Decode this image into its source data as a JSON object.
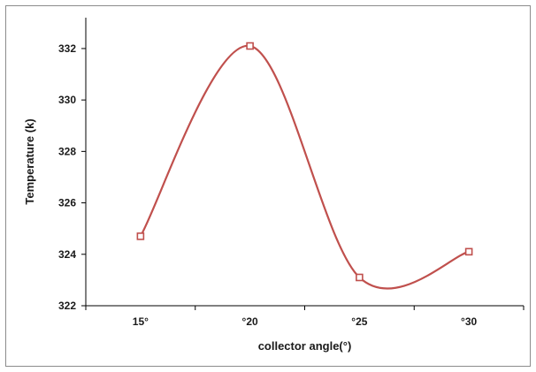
{
  "chart_data": {
    "type": "line",
    "title": "",
    "xlabel": "collector angle(°)",
    "ylabel": "Temperature   (k)",
    "categories": [
      "15°",
      "°20",
      "°25",
      "°30"
    ],
    "series": [
      {
        "values": [
          324.7,
          332.1,
          323.1,
          324.1
        ]
      }
    ],
    "yticks": [
      "322",
      "324",
      "326",
      "328",
      "330",
      "332"
    ],
    "ylim": [
      322,
      333.2
    ],
    "grid": false,
    "legend": "none",
    "smooth": true,
    "line_color": "#c0504d",
    "marker": "hollow-square"
  }
}
